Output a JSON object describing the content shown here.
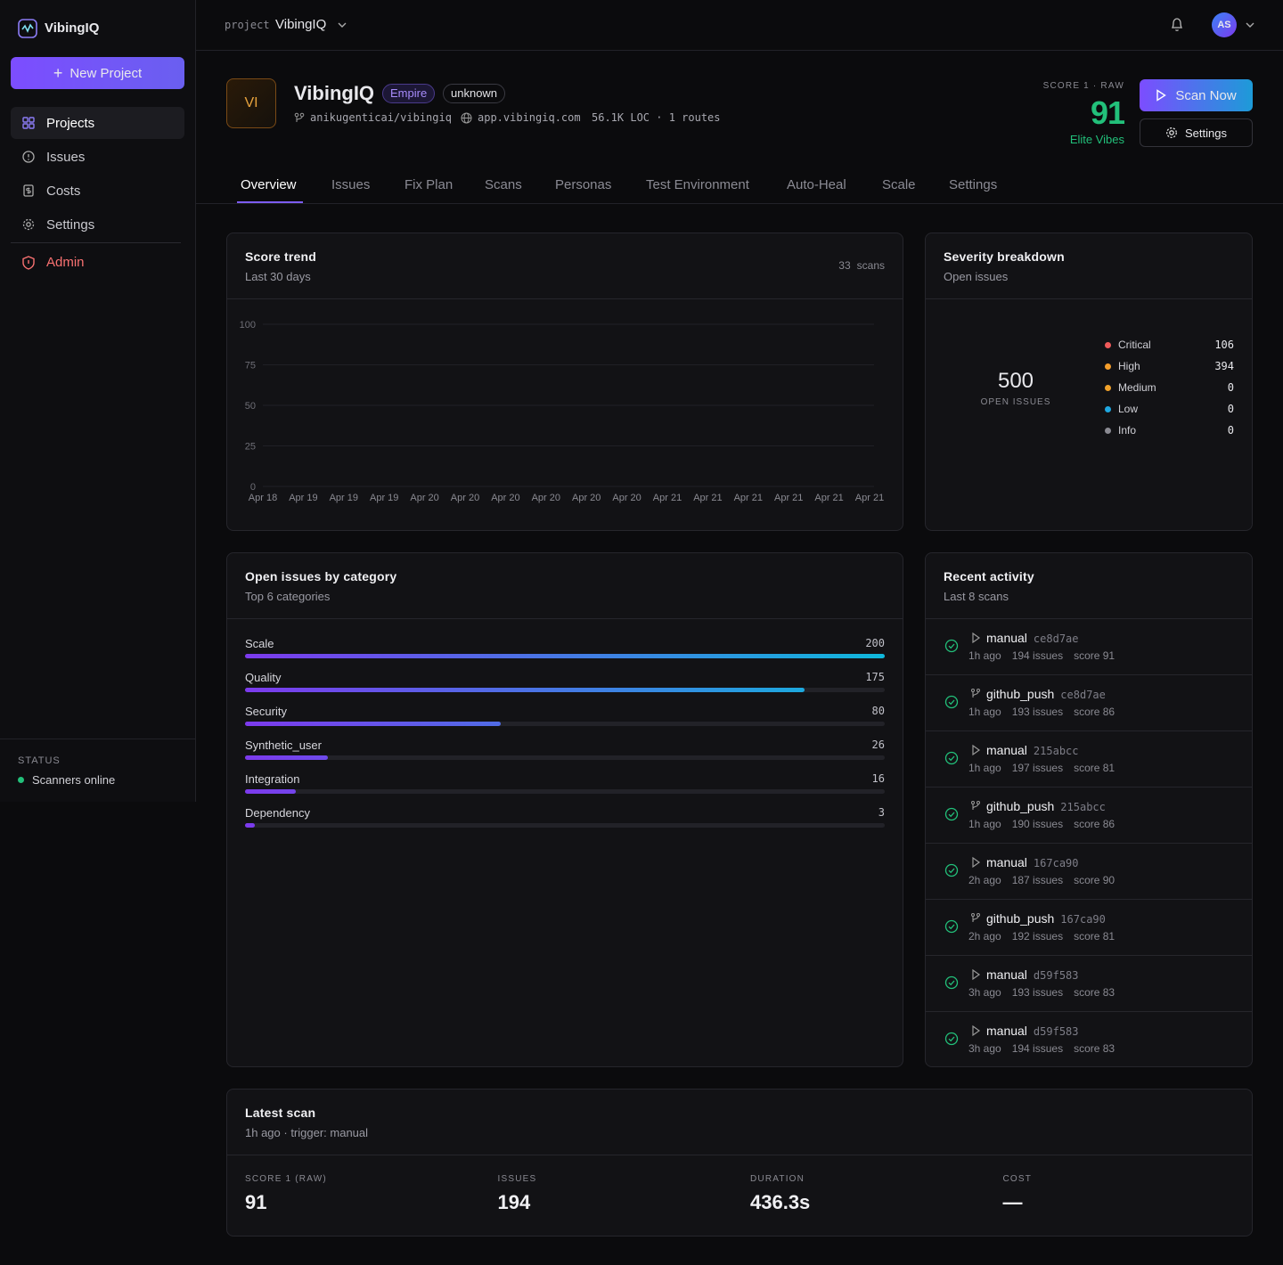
{
  "sidebar": {
    "brand": "VibingIQ",
    "new_project": "New Project",
    "nav": [
      "Projects",
      "Issues",
      "Costs",
      "Settings"
    ],
    "admin": "Admin",
    "status_label": "STATUS",
    "status": "Scanners online"
  },
  "topbar": {
    "project_label": "project",
    "project": "VibingIQ",
    "avatar": "AS"
  },
  "header": {
    "avatar": "VI",
    "name": "VibingIQ",
    "badges": [
      "Empire",
      "unknown"
    ],
    "repo": "anikugenticai/vibingiq",
    "domain": "app.vibingiq.com",
    "meta": "56.1K LOC · 1 routes",
    "score_label": "SCORE 1 · RAW",
    "score": 91,
    "tier": "Elite Vibes",
    "scan_button": "Scan Now",
    "settings_button": "Settings"
  },
  "tabs": [
    "Overview",
    "Issues",
    "Fix Plan",
    "Scans",
    "Personas",
    "Test Environment",
    "Auto-Heal",
    "Scale",
    "Settings"
  ],
  "chart_data": [
    {
      "type": "line",
      "title": "Score trend",
      "subtitle": "Last 30 days",
      "scan_count": 33,
      "scan_count_label": "scans",
      "categories": [
        "Apr 18",
        "Apr 19",
        "Apr 19",
        "Apr 19",
        "Apr 20",
        "Apr 20",
        "Apr 20",
        "Apr 20",
        "Apr 20",
        "Apr 20",
        "Apr 21",
        "Apr 21",
        "Apr 21",
        "Apr 21",
        "Apr 21",
        "Apr 21"
      ],
      "ylim": [
        0,
        100
      ],
      "yticks": [
        0,
        25,
        50,
        75,
        100
      ],
      "grid": true
    },
    {
      "type": "donut",
      "title": "Severity breakdown",
      "subtitle": "Open issues",
      "total": 500,
      "total_label": "OPEN ISSUES",
      "categories": [
        "Critical",
        "High",
        "Medium",
        "Low",
        "Info"
      ],
      "values": [
        106,
        394,
        0,
        0,
        0
      ],
      "colors": [
        "#ef5a5a",
        "#f59e2b",
        "#f0a12a",
        "#1fa7e0",
        "#8a8a92"
      ]
    },
    {
      "type": "hbar",
      "title": "Open issues by category",
      "subtitle": "Top 6 categories",
      "categories": [
        "Scale",
        "Quality",
        "Security",
        "Synthetic_user",
        "Integration",
        "Dependency"
      ],
      "values": [
        200,
        175,
        80,
        26,
        16,
        3
      ],
      "colors": [
        "#7c3aed",
        "#0fb8dc"
      ]
    }
  ],
  "activity": {
    "title": "Recent activity",
    "subtitle": "Last 8 scans",
    "items": [
      {
        "trigger": "manual",
        "commit": "ce8d7ae",
        "time": "1h ago",
        "issues": "194 issues",
        "score": "score 91"
      },
      {
        "trigger": "github_push",
        "commit": "ce8d7ae",
        "time": "1h ago",
        "issues": "193 issues",
        "score": "score 86"
      },
      {
        "trigger": "manual",
        "commit": "215abcc",
        "time": "1h ago",
        "issues": "197 issues",
        "score": "score 81"
      },
      {
        "trigger": "github_push",
        "commit": "215abcc",
        "time": "1h ago",
        "issues": "190 issues",
        "score": "score 86"
      },
      {
        "trigger": "manual",
        "commit": "167ca90",
        "time": "2h ago",
        "issues": "187 issues",
        "score": "score 90"
      },
      {
        "trigger": "github_push",
        "commit": "167ca90",
        "time": "2h ago",
        "issues": "192 issues",
        "score": "score 81"
      },
      {
        "trigger": "manual",
        "commit": "d59f583",
        "time": "3h ago",
        "issues": "193 issues",
        "score": "score 83"
      },
      {
        "trigger": "manual",
        "commit": "d59f583",
        "time": "3h ago",
        "issues": "194 issues",
        "score": "score 83"
      }
    ]
  },
  "latest_scan": {
    "title": "Latest scan",
    "subtitle": "1h ago · trigger: manual",
    "stats": [
      {
        "label": "SCORE 1 (RAW)",
        "value": 91
      },
      {
        "label": "ISSUES",
        "value": 194
      },
      {
        "label": "DURATION",
        "value": "436.3s"
      },
      {
        "label": "COST",
        "value": "—"
      }
    ]
  }
}
